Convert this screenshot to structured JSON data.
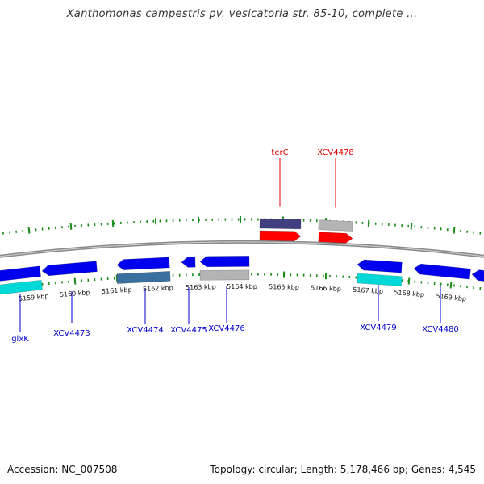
{
  "header": {
    "title": "Xanthomonas campestris pv. vesicatoria str. 85-10, complete ..."
  },
  "footer": {
    "accession": "Accession: NC_007508",
    "summary": "Topology: circular; Length: 5,178,466 bp; Genes: 4,545"
  },
  "colors": {
    "backbone": "#8a8a8a",
    "tick": "#1a8a1a",
    "forward_gene": "#ff0000",
    "reverse_gene": "#0000ee",
    "upper_label": "#dd0000",
    "lower_label": "#0000cc",
    "feature_dark": "#404080",
    "feature_steel": "#3a6f9f",
    "feature_cyan": "#00d8d8",
    "feature_grey": "#b4b4b4"
  },
  "scale": {
    "ticks": [
      {
        "label": "5159 kbp"
      },
      {
        "label": "5160 kbp"
      },
      {
        "label": "5161 kbp"
      },
      {
        "label": "5162 kbp"
      },
      {
        "label": "5163 kbp"
      },
      {
        "label": "5164 kbp"
      },
      {
        "label": "5165 kbp"
      },
      {
        "label": "5166 kbp"
      },
      {
        "label": "5167 kbp"
      },
      {
        "label": "5168 kbp"
      },
      {
        "label": "5169 kbp"
      }
    ]
  },
  "upper_genes": [
    {
      "name": "terC",
      "strand": "+"
    },
    {
      "name": "XCV4478",
      "strand": "+"
    }
  ],
  "lower_genes": [
    {
      "name": "glxK",
      "strand": "-"
    },
    {
      "name": "XCV4473",
      "strand": "-"
    },
    {
      "name": "XCV4474",
      "strand": "-"
    },
    {
      "name": "XCV4475",
      "strand": "-"
    },
    {
      "name": "XCV4476",
      "strand": "-"
    },
    {
      "name": "XCV4479",
      "strand": "-"
    },
    {
      "name": "XCV4480",
      "strand": "-"
    }
  ]
}
